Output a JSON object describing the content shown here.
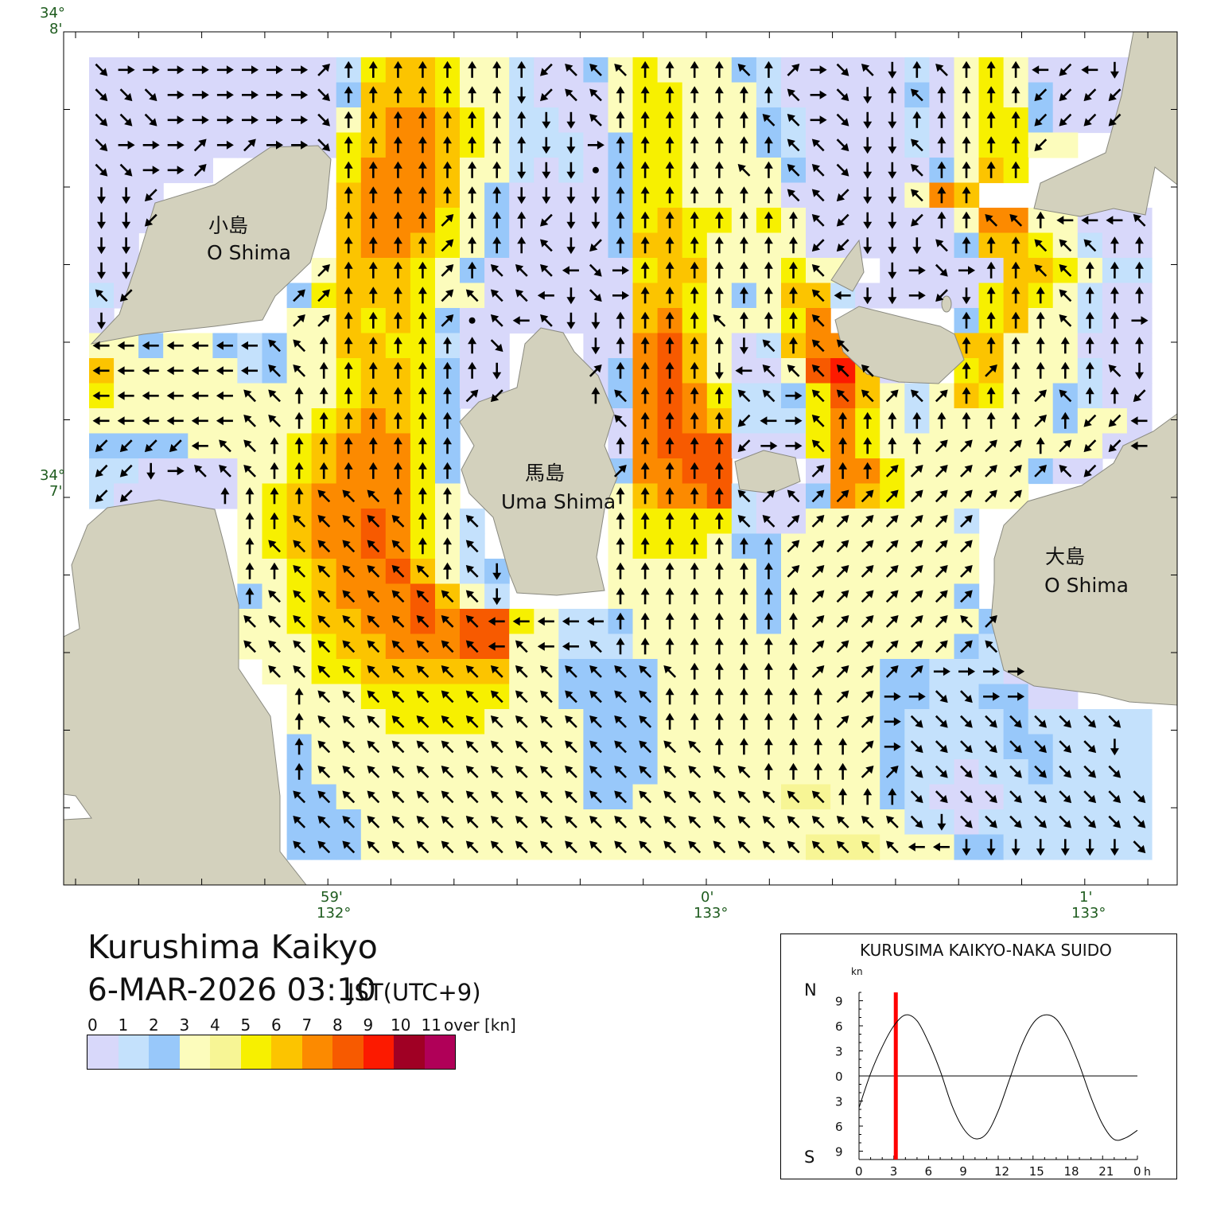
{
  "title": "Kurushima Kaikyo",
  "datetime": "6-MAR-2026 03:10",
  "timezone": "JST(UTC+9)",
  "map": {
    "lat_labels": [
      {
        "deg": "34°",
        "min": "8'"
      },
      {
        "deg": "34°",
        "min": "7'"
      }
    ],
    "lon_labels": [
      {
        "min": "59'",
        "deg": "132°"
      },
      {
        "min": "0'",
        "deg": "133°"
      },
      {
        "min": "1'",
        "deg": "133°"
      }
    ],
    "islands": [
      {
        "jp": "小島",
        "en": "O Shima"
      },
      {
        "jp": "馬島",
        "en": "Uma Shima"
      },
      {
        "jp": "大島",
        "en": "O Shima"
      }
    ],
    "speed_class_grid": [
      "0000000000156653310023533321000001035300000.",
      "0000000000266653310003553331000002035320000.",
      "0000000000367765311003553332100001035520000.",
      "0000000000567765311102553332100001035533....",
      "00000.....577763310102553333200000236 5.....",
      "000.......67776320000255333300000376.......",
      "000.......6777532000025655353000000377 3300 0",
      "00........6776532000026653333000000266531 00",
      "00.......3666532000000566333533.00000665311 0",
      "10......25666533000000665323661000005653100",
      "0.......336565200000006753335 7.....25633100",
      "33233212336655100...0078630167 7....66333000",
      "63333312335665200...027863003896 0..56333100",
      "53333333335665200...02787511258631365332100",
      "333333333567652......078761115753133333233 0",
      "222233335677752......0788800057533333333300",
      "110000335677752......277 88...07753333320 0..",
      "100000356777753......36778100276533333.....",
      "......3567787531.....355551003333331.......",
      "......3567787531.....355532233333333.......",
      "......33567786312....333333233333333.......",
      "......23567778631....333333233333332.......",
      "......33566778788531123333323333333322.....",
      "......33356677788331113333333333333211.....",
      ".......3355666666332222333333333221110.....",
      "........333555555332222333333333221122 00...",
      "........3333555533332223333333332111121 1111",
      "........2333333333332223333333332111122 1111",
      "........2333333333332223333333332110112 1111",
      "........2233333333332233333344332100011 1111",
      "........2223333333333333333333333110111 1111",
      "........2223333333333333333334443332211111111"
    ],
    "direction_grid": [
      "cEEEEEEEEeNNNNNNNNzqqqNNNNqNeEcqSNqNNNWzWS.",
      "cccEEEEEEcNNNNNNNSzqqNNNNNNNqEcSNqNNNNzzzz.",
      "cccEEEEEEcNNNNNNNNSSqNNNNNNqqEcSSNNNNNzzzz.",
      "cEEEeEeEEcNNNNNNNNSSENNNNNNNqqcSSqNNNNz....",
      "ccEEe.....NNNNNNNSSSONNNNNqNqqcSSqNNNN.....",
      "SSz.......NNNNNNNSSSSNNNNNNNqqzSSqNNNN.....",
      "SSz.......NNNNeNNNzSSNNNNNNNNqzSSzNNqqNWWWq",
      "SS........NNNNeNNNqSzNNNNNNNNzzSSSqNNNqqqNN",
      "SS.......eNNNNeNqqqWcENNNNNNNq.ESEcENNqqNNN",
      "qz......eeNNNNeqqqWScENNNNNNNqWSSEzSNNNqNNN",
      "S.......eeNNNNeOqWqSSNNNNqNNNq....qNNNNqNNE",
      "WWWWWWWqqNNNNNNNc...SNNNNNSqNqq....NNNNNNNN",
      "WWWWWWWqqNNNNNNNS...eNNNNSWqqqqq...NeNNNNqS",
      "WWWWWWqqNNNNNNNez...NqNNNNqqEqqqeqeNNNeqNNz",
      "WWWWWWqqNNNNNNN......qNNNNzWEqNNNNNNNNeNzzW",
      "zzzzWqqNNNNNNNN......NNNNNzEEqNNNNeeeeNezzW",
      "zzSEqqqNNNNNNNN......eNNNN...eNNeeeeeeeqz..",
      "zzoooNNNNqqqNNN......NNNNNqeqeeeeeeeee.....",
      "......NNqqqqqNNq.....NNNNNqqeeeeeeeee......",
      "......NqqqqqqNNq.....NNNNNNNeeeeeeee.......",
      "......NNqqqqqqNqS....NNNNNNNeeeeeeee.......",
      "......NqqqqqqqqqS....NNNNNNNNeeeeeee.......",
      "......qqqqqqqqqqWWWWWNNNNNNNNeeeeeeqe......",
      "......qqqqqqqqqqWqWWqNNNNNNNNeeeeeeeq......",
      ".......qqqqqqqqqqqqqqqqqNNNNNeeeeeEEEE.....",
      "........NqqqqqqqqqqqqqqNNNNNNNeeEEccEEo...",
      "........NqqqqqqqqqqqqqqNNNNNNNeeEccccccccc",
      "........NqqqqqqqqqqqqqqqqNNNNNNeEccccccccS",
      "........NqqqqqqqqqqqqqqqqqqNNNNeeccccccccc",
      "........qqqqqqqqqqqqqqqqqqqqqqNNNcccccccccc",
      "........qqqqqqqqqqqqqqqqqqqqqqqqqcScccccccc",
      "........qqqqqqqqqqqqqqqqqqqqqqqqqWWSSSSSSSc"
    ]
  },
  "legend": {
    "labels": [
      "0",
      "1",
      "2",
      "3",
      "4",
      "5",
      "6",
      "7",
      "8",
      "9",
      "10",
      "11",
      "over [kn]"
    ],
    "colors": [
      "#d8d8fa",
      "#c4e1fc",
      "#98c8fa",
      "#fcfcbc",
      "#f7f595",
      "#f7f000",
      "#fcc400",
      "#fc8a00",
      "#f75a00",
      "#fc1a00",
      "#a00024",
      "#b00058"
    ]
  },
  "chart_data": {
    "type": "line",
    "title": "KURUSIMA KAIKYO-NAKA SUIDO",
    "ylabel": "kn",
    "north_label": "N",
    "south_label": "S",
    "xlim": [
      0,
      24
    ],
    "ylim": [
      -10.5,
      10.5
    ],
    "x_ticks": [
      "0",
      "3",
      "6",
      "9",
      "12",
      "15",
      "18",
      "21",
      "0"
    ],
    "x_tick_values": [
      0,
      3,
      6,
      9,
      12,
      15,
      18,
      21,
      24
    ],
    "x_unit": "h",
    "y_ticks": [
      "9",
      "6",
      "3",
      "0",
      "3",
      "6",
      "9"
    ],
    "y_tick_values": [
      9,
      6,
      3,
      0,
      -3,
      -6,
      -9
    ],
    "current_time_h": 3.17,
    "current_marker_color": "#ff0000",
    "series": [
      {
        "name": "current speed",
        "x": [
          0,
          1,
          2,
          3,
          4,
          5,
          6,
          7,
          8,
          9,
          10,
          11,
          12,
          13,
          14,
          15,
          16,
          17,
          18,
          19,
          20,
          21,
          22,
          23,
          24
        ],
        "y": [
          -3.8,
          0.3,
          3.5,
          6.0,
          7.3,
          6.6,
          4.0,
          0.6,
          -3.5,
          -6.3,
          -7.5,
          -6.9,
          -4.2,
          -0.3,
          3.6,
          6.3,
          7.3,
          6.8,
          4.6,
          1.3,
          -2.6,
          -5.8,
          -7.6,
          -7.4,
          -6.5
        ]
      }
    ]
  }
}
